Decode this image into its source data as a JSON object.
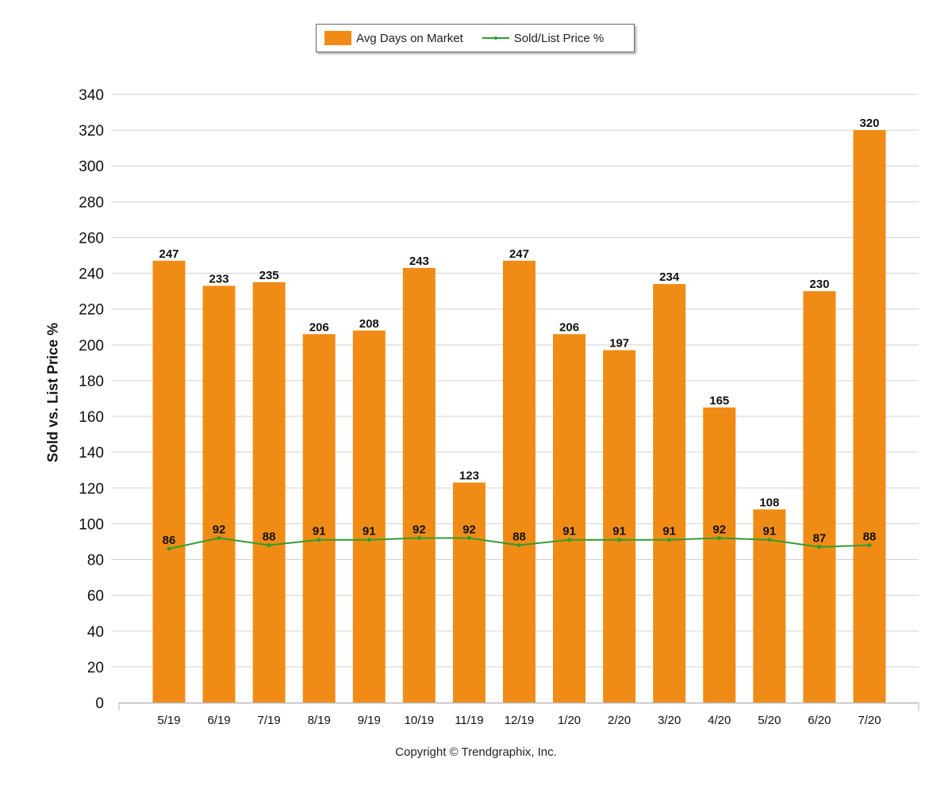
{
  "legend": {
    "bar_label": "Avg Days on Market",
    "line_label": "Sold/List Price %"
  },
  "footer": {
    "copyright": "Copyright © Trendgraphix, Inc."
  },
  "colors": {
    "bar": "#F08C16",
    "line": "#2E9E2E",
    "grid": "#d0d0d0"
  },
  "chart_data": {
    "type": "bar",
    "title": "",
    "xlabel": "",
    "ylabel": "Sold vs. List Price %",
    "ylim": [
      0,
      340
    ],
    "yticks": [
      0,
      20,
      40,
      60,
      80,
      100,
      120,
      140,
      160,
      180,
      200,
      220,
      240,
      260,
      280,
      300,
      320,
      340
    ],
    "grid": true,
    "legend_position": "top-center",
    "categories": [
      "5/19",
      "6/19",
      "7/19",
      "8/19",
      "9/19",
      "10/19",
      "11/19",
      "12/19",
      "1/20",
      "2/20",
      "3/20",
      "4/20",
      "5/20",
      "6/20",
      "7/20"
    ],
    "series": [
      {
        "name": "Avg Days on Market",
        "type": "bar",
        "values": [
          247,
          233,
          235,
          206,
          208,
          243,
          123,
          247,
          206,
          197,
          234,
          165,
          108,
          230,
          320
        ]
      },
      {
        "name": "Sold/List Price %",
        "type": "line",
        "values": [
          86,
          92,
          88,
          91,
          91,
          92,
          92,
          88,
          91,
          91,
          91,
          92,
          91,
          87,
          88
        ]
      }
    ]
  }
}
